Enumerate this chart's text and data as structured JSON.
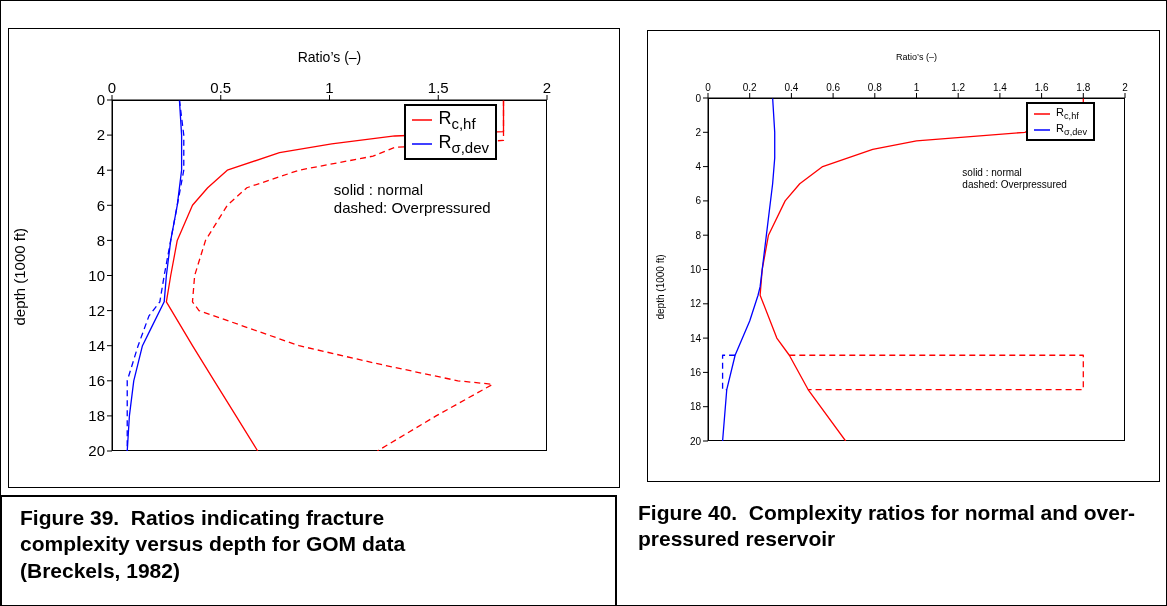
{
  "chart_data": [
    {
      "type": "line",
      "xlabel": "Ratio’s (–)",
      "ylabel": "depth (1000 ft)",
      "xlim": [
        0,
        2
      ],
      "xticks": [
        0,
        0.5,
        1,
        1.5,
        2
      ],
      "ylim": [
        20,
        0
      ],
      "yticks": [
        0,
        2,
        4,
        6,
        8,
        10,
        12,
        14,
        16,
        18,
        20
      ],
      "legend": "top right",
      "grid": false,
      "marker": "none",
      "annotations": [
        "solid : normal",
        "dashed: Overpressured",
        "Figure 39.  Ratios indicating fracture complexity versus depth for GOM data (Breckels, 1982)"
      ],
      "series": [
        {
          "name": "R$_{c,hf}$",
          "color": "#ff0000",
          "line_style": "solid",
          "x": [
            1.8,
            1.8,
            1.3,
            1.01,
            0.77,
            0.53,
            0.44,
            0.37,
            0.3,
            0.27,
            0.25,
            0.37,
            0.47,
            0.57,
            0.67
          ],
          "values": [
            0,
            1.8,
            2.05,
            2.5,
            3,
            4,
            5,
            6,
            8,
            10,
            11.5,
            14,
            16,
            18,
            20
          ]
        },
        {
          "name": "R$_{σ,dev}$",
          "color": "#0000ff",
          "line_style": "solid",
          "x": [
            0.31,
            0.32,
            0.32,
            0.3,
            0.27,
            0.25,
            0.24,
            0.18,
            0.14,
            0.1,
            0.08,
            0.07
          ],
          "values": [
            0,
            2,
            4,
            6,
            8,
            10,
            11.5,
            13,
            14,
            16,
            18,
            20
          ]
        },
        {
          "color": "#ff0000",
          "line_style": "dashed",
          "x": [
            1.8,
            1.8,
            1.3,
            1.2,
            0.86,
            0.62,
            0.53,
            0.43,
            0.38,
            0.37,
            0.4,
            0.86,
            1.21,
            1.59,
            1.75,
            1.49,
            1.22
          ],
          "values": [
            0,
            2.3,
            2.7,
            3.2,
            4,
            5,
            6,
            8,
            10,
            11.5,
            12,
            14,
            15,
            16,
            16.2,
            18,
            20
          ]
        },
        {
          "color": "#0000ff",
          "line_style": "dashed",
          "x": [
            0.31,
            0.33,
            0.33,
            0.3,
            0.27,
            0.24,
            0.22,
            0.17,
            0.12,
            0.07,
            0.07
          ],
          "values": [
            0,
            2,
            4,
            6,
            8,
            10,
            11.5,
            12.3,
            14,
            16,
            20
          ]
        }
      ]
    },
    {
      "type": "line",
      "xlabel": "Ratio’s (–)",
      "ylabel": "depth (1000 ft)",
      "xlim": [
        0,
        2
      ],
      "xticks": [
        0,
        0.2,
        0.4,
        0.6,
        0.8,
        1,
        1.2,
        1.4,
        1.6,
        1.8,
        2
      ],
      "ylim": [
        20,
        0
      ],
      "yticks": [
        0,
        2,
        4,
        6,
        8,
        10,
        12,
        14,
        16,
        18,
        20
      ],
      "legend": "top right",
      "grid": false,
      "marker": "none",
      "annotations": [
        "solid : normal",
        "dashed: Overpressured",
        "Figure 40.  Complexity ratios for normal and over-pressured reservoir"
      ],
      "series": [
        {
          "name": "R$_{c,hf}$",
          "color": "#ff0000",
          "line_style": "solid",
          "x": [
            1.8,
            1.8,
            1.52,
            1.0,
            0.79,
            0.55,
            0.44,
            0.37,
            0.29,
            0.26,
            0.25,
            0.33,
            0.39,
            0.48,
            0.66
          ],
          "values": [
            0,
            0.3,
            2,
            2.5,
            3,
            4,
            5,
            6,
            8,
            10,
            11.5,
            14,
            15,
            17,
            20
          ]
        },
        {
          "name": "R$_{σ,dev}$",
          "color": "#0000ff",
          "line_style": "solid",
          "x": [
            0.31,
            0.32,
            0.32,
            0.31,
            0.28,
            0.25,
            0.24,
            0.2,
            0.13,
            0.09,
            0.07
          ],
          "values": [
            0,
            2,
            3.5,
            5,
            8,
            11,
            11.5,
            13,
            15,
            17,
            20
          ]
        },
        {
          "color": "#ff0000",
          "line_style": "dashed",
          "x": [
            0.39,
            1.8,
            1.8,
            0.48
          ],
          "values": [
            15,
            15,
            17,
            17
          ]
        },
        {
          "color": "#0000ff",
          "line_style": "dashed",
          "x": [
            0.13,
            0.07,
            0.07,
            0.09
          ],
          "values": [
            15,
            15,
            17,
            17
          ]
        }
      ]
    }
  ]
}
